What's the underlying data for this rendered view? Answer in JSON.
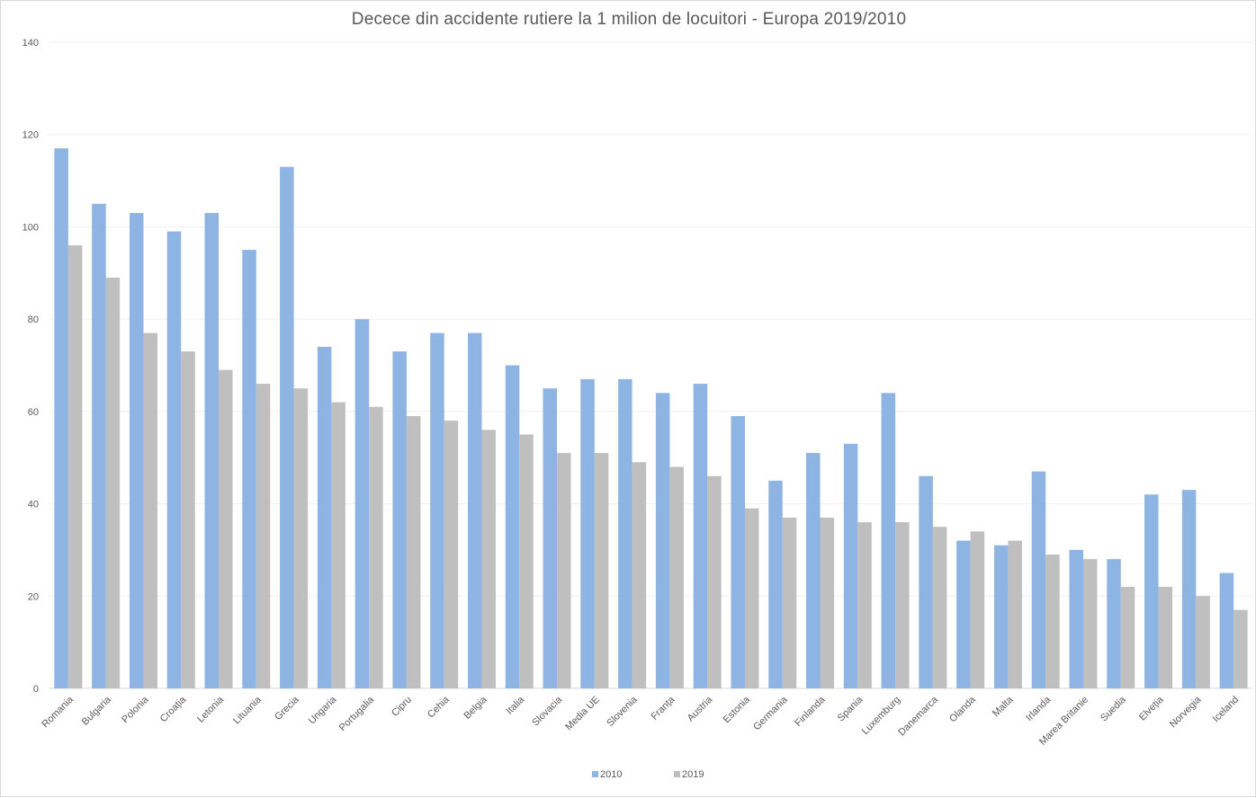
{
  "chart_data": {
    "type": "bar",
    "title": "Decece din accidente rutiere la 1 milion de locuitori - Europa  2019/2010",
    "xlabel": "",
    "ylabel": "",
    "ylim": [
      0,
      140
    ],
    "yticks": [
      "0",
      "20",
      "40",
      "60",
      "80",
      "100",
      "120",
      "140"
    ],
    "grid": true,
    "legend_position": "bottom",
    "categories": [
      "Romania",
      "Bulgaria",
      "Polonia",
      "Croația",
      "Letonia",
      "Lituania",
      "Grecia",
      "Ungaria",
      "Portugalia",
      "Cipru",
      "Cehia",
      "Belgia",
      "Italia",
      "Slovacia",
      "Media UE",
      "Slovenia",
      "Franța",
      "Austria",
      "Estonia",
      "Germania",
      "Finlanda",
      "Spania",
      "Luxemburg",
      "Danemarca",
      "Olanda",
      "Malta",
      "Irlanda",
      "Marea Britanie",
      "Suedia",
      "Elveția",
      "Norvegia",
      "Iceland"
    ],
    "series": [
      {
        "name": "2010",
        "color": "#8db4e2",
        "values": [
          117,
          105,
          103,
          99,
          103,
          95,
          113,
          74,
          80,
          73,
          77,
          77,
          70,
          65,
          67,
          67,
          64,
          66,
          59,
          45,
          51,
          53,
          64,
          46,
          32,
          31,
          47,
          30,
          28,
          42,
          43,
          25
        ]
      },
      {
        "name": "2019",
        "color": "#bfbfbf",
        "values": [
          96,
          89,
          77,
          73,
          69,
          66,
          65,
          62,
          61,
          59,
          58,
          56,
          55,
          51,
          51,
          49,
          48,
          46,
          39,
          37,
          37,
          36,
          36,
          35,
          34,
          32,
          29,
          28,
          22,
          22,
          20,
          17
        ]
      }
    ]
  }
}
